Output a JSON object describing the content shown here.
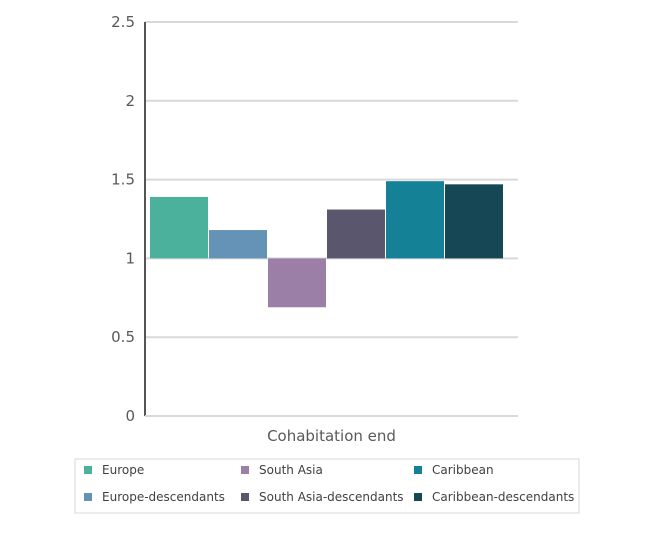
{
  "chart_data": {
    "type": "bar",
    "categories": [
      "Cohabitation end"
    ],
    "baseline": 1,
    "ylim": [
      0,
      2.5
    ],
    "yticks": [
      0,
      0.5,
      1,
      1.5,
      2,
      2.5
    ],
    "ytick_labels": [
      "0",
      "0.5",
      "1",
      "1.5",
      "2",
      "2.5"
    ],
    "grid": true,
    "legend_position": "bottom",
    "series": [
      {
        "name": "Europe",
        "values": [
          1.39
        ],
        "color": "#4bb19c"
      },
      {
        "name": "Europe-descendants",
        "values": [
          1.18
        ],
        "color": "#6593b5"
      },
      {
        "name": "South Asia",
        "values": [
          0.69
        ],
        "color": "#9b7fa6"
      },
      {
        "name": "South Asia-descendants",
        "values": [
          1.31
        ],
        "color": "#5a566e"
      },
      {
        "name": "Caribbean",
        "values": [
          1.49
        ],
        "color": "#158196"
      },
      {
        "name": "Caribbean-descendants",
        "values": [
          1.47
        ],
        "color": "#154755"
      }
    ],
    "colors": {
      "axis": "#555555",
      "grid": "#d9d9d9",
      "text": "#595959",
      "legend_border": "#d9d9d9"
    }
  }
}
